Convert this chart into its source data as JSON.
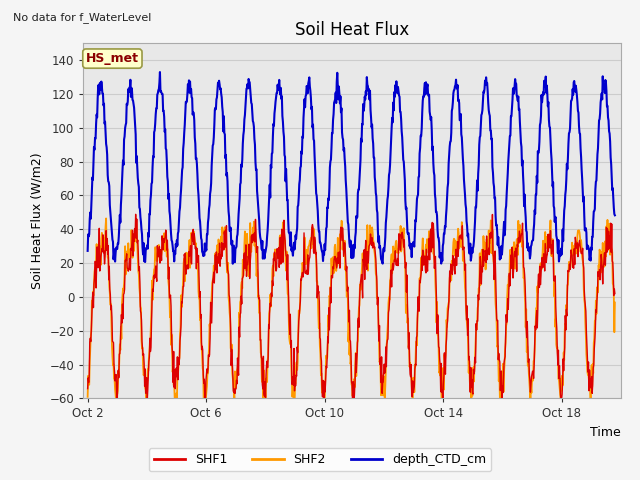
{
  "title": "Soil Heat Flux",
  "top_left_text": "No data for f_WaterLevel",
  "ylabel": "Soil Heat Flux (W/m2)",
  "xlabel": "Time",
  "annotation_box": "HS_met",
  "ylim": [
    -60,
    150
  ],
  "yticks": [
    -60,
    -40,
    -20,
    0,
    20,
    40,
    60,
    80,
    100,
    120,
    140
  ],
  "xtick_positions": [
    2,
    6,
    10,
    14,
    18
  ],
  "xtick_labels": [
    "Oct 2",
    "Oct 6",
    "Oct 10",
    "Oct 14",
    "Oct 18"
  ],
  "legend_entries": [
    "SHF1",
    "SHF2",
    "depth_CTD_cm"
  ],
  "line_colors": [
    "#dd0000",
    "#ff9900",
    "#0000cc"
  ],
  "fig_bg_color": "#f5f5f5",
  "plot_bg_color": "#e8e8e8",
  "n_points": 1000,
  "start_day": 2.0,
  "end_day": 19.8
}
